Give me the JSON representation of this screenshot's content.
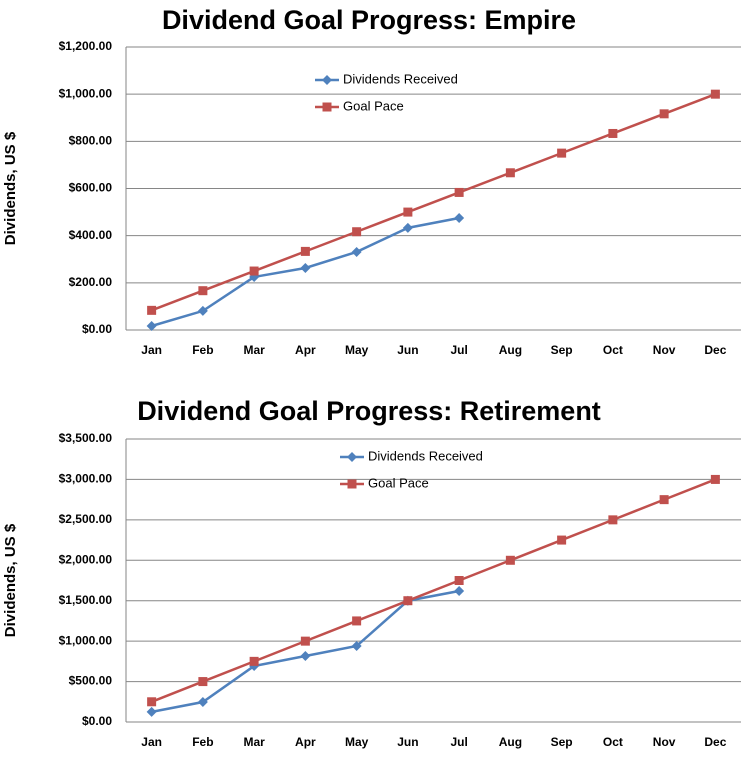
{
  "chart_data": [
    {
      "type": "line",
      "title": "Dividend Goal Progress: Empire",
      "y_label": "Dividends, US $",
      "categories": [
        "Jan",
        "Feb",
        "Mar",
        "Apr",
        "May",
        "Jun",
        "Jul",
        "Aug",
        "Sep",
        "Oct",
        "Nov",
        "Dec"
      ],
      "series": [
        {
          "name": "Dividends Received",
          "color": "#4f81bd",
          "marker": "diamond",
          "values": [
            17,
            81,
            225,
            263,
            331,
            433,
            475,
            null,
            null,
            null,
            null,
            null
          ]
        },
        {
          "name": "Goal Pace",
          "color": "#c0504d",
          "marker": "square",
          "values": [
            83.33,
            166.67,
            250,
            333.33,
            416.67,
            500,
            583.33,
            666.67,
            750,
            833.33,
            916.67,
            1000
          ]
        }
      ],
      "ylim": [
        0,
        1200
      ],
      "yticks": [
        {
          "value": 0,
          "label": "$0.00"
        },
        {
          "value": 200,
          "label": "$200.00"
        },
        {
          "value": 400,
          "label": "$400.00"
        },
        {
          "value": 600,
          "label": "$600.00"
        },
        {
          "value": 800,
          "label": "$800.00"
        },
        {
          "value": 1000,
          "label": "$1,000.00"
        },
        {
          "value": 1200,
          "label": "$1,200.00"
        }
      ],
      "grid": true,
      "legend": "top-left"
    },
    {
      "type": "line",
      "title": "Dividend Goal Progress: Retirement",
      "y_label": "Dividends, US $",
      "categories": [
        "Jan",
        "Feb",
        "Mar",
        "Apr",
        "May",
        "Jun",
        "Jul",
        "Aug",
        "Sep",
        "Oct",
        "Nov",
        "Dec"
      ],
      "series": [
        {
          "name": "Dividends Received",
          "color": "#4f81bd",
          "marker": "diamond",
          "values": [
            125,
            247,
            693,
            816,
            940,
            1500,
            1620,
            null,
            null,
            null,
            null,
            null
          ]
        },
        {
          "name": "Goal Pace",
          "color": "#c0504d",
          "marker": "square",
          "values": [
            250,
            500,
            750,
            1000,
            1250,
            1500,
            1750,
            2000,
            2250,
            2500,
            2750,
            3000
          ]
        }
      ],
      "ylim": [
        0,
        3500
      ],
      "yticks": [
        {
          "value": 0,
          "label": "$0.00"
        },
        {
          "value": 500,
          "label": "$500.00"
        },
        {
          "value": 1000,
          "label": "$1,000.00"
        },
        {
          "value": 1500,
          "label": "$1,500.00"
        },
        {
          "value": 2000,
          "label": "$2,000.00"
        },
        {
          "value": 2500,
          "label": "$2,500.00"
        },
        {
          "value": 3000,
          "label": "$3,000.00"
        },
        {
          "value": 3500,
          "label": "$3,500.00"
        }
      ],
      "grid": true,
      "legend": "top-left"
    }
  ]
}
